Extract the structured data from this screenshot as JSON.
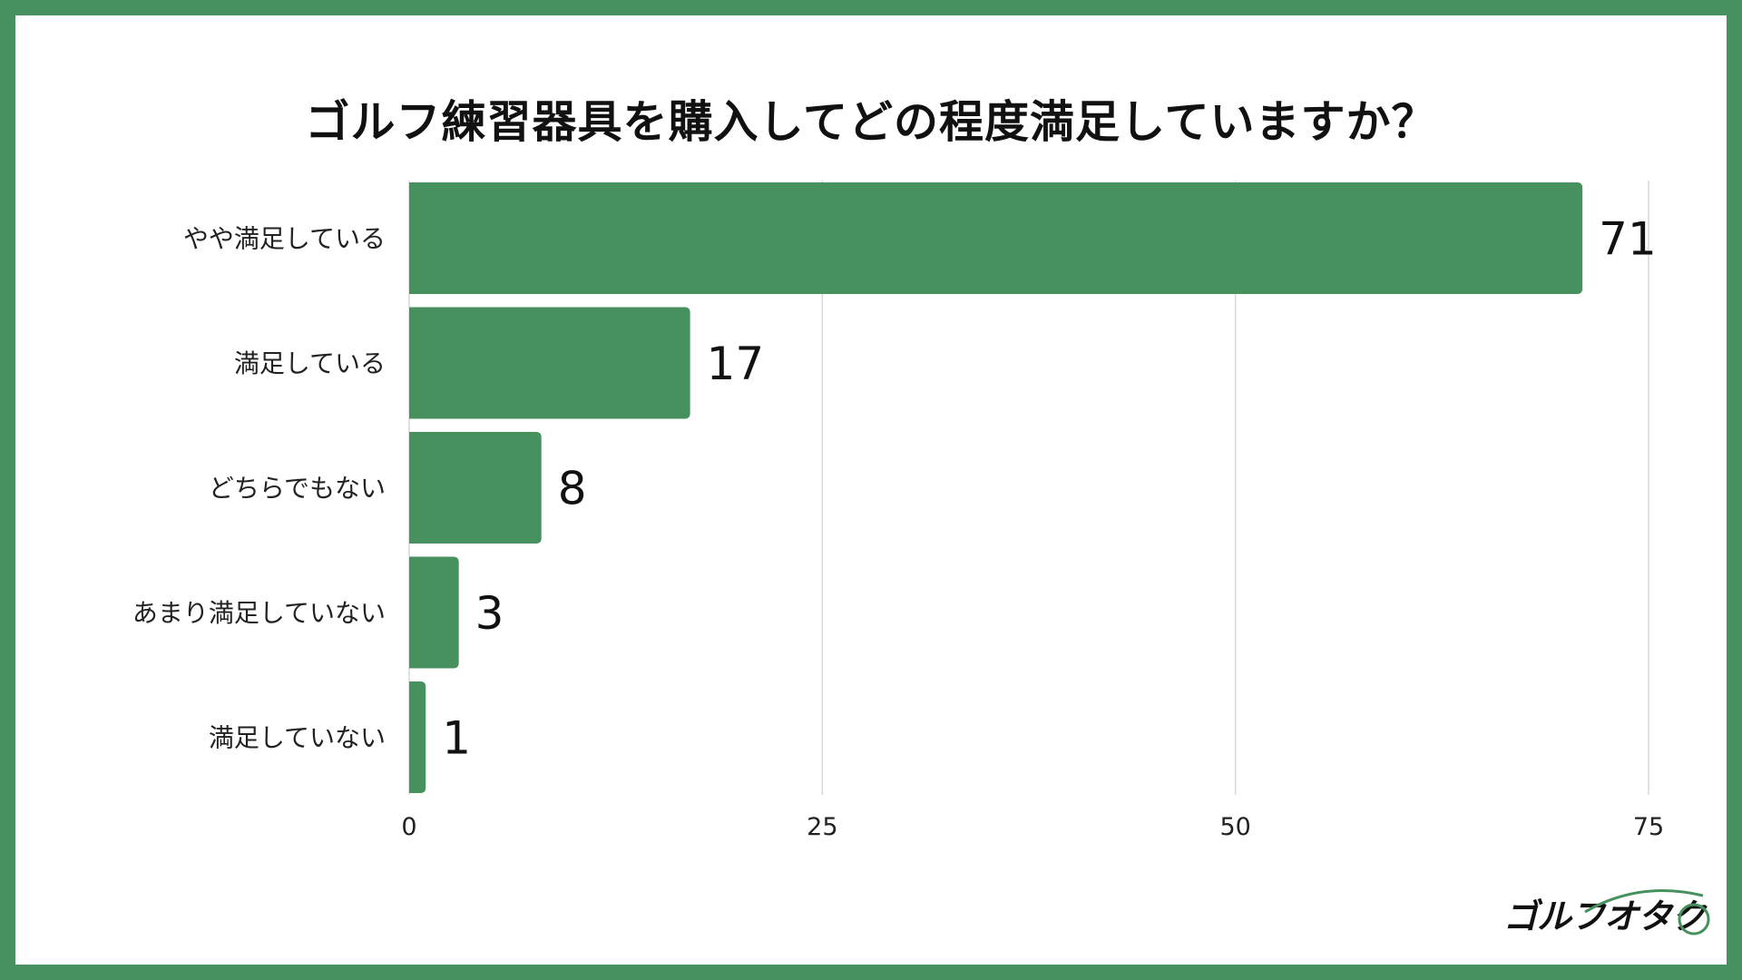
{
  "chart_data": {
    "type": "bar",
    "orientation": "horizontal",
    "title": "ゴルフ練習器具を購入してどの程度満足していますか？",
    "categories": [
      "やや満足している",
      "満足している",
      "どちらでもない",
      "あまり満足していない",
      "満足していない"
    ],
    "values": [
      71,
      17,
      8,
      3,
      1
    ],
    "xlim": [
      0,
      75
    ],
    "xticks": [
      0,
      25,
      50,
      75
    ],
    "grid": true,
    "bar_color": "#47915f"
  },
  "branding": {
    "logo_text": "ゴルフオタク"
  },
  "colors": {
    "frame": "#47915f",
    "background": "#ffffff"
  }
}
